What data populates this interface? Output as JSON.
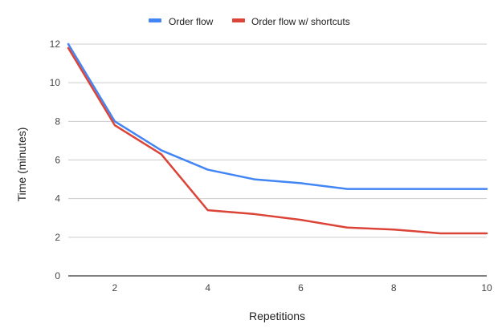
{
  "chart_data": {
    "type": "line",
    "title": "",
    "xlabel": "Repetitions",
    "ylabel": "Time (minutes)",
    "x": [
      1,
      2,
      3,
      4,
      5,
      6,
      7,
      8,
      9,
      10
    ],
    "xlim": [
      1,
      10
    ],
    "ylim": [
      0,
      12
    ],
    "x_ticks": [
      2,
      4,
      6,
      8,
      10
    ],
    "y_ticks": [
      0,
      2,
      4,
      6,
      8,
      10,
      12
    ],
    "grid": true,
    "legend_position": "top-center",
    "series": [
      {
        "name": "Order flow",
        "color": "#4285F4",
        "values": [
          12,
          8,
          6.5,
          5.5,
          5,
          4.8,
          4.5,
          4.5,
          4.5,
          4.5
        ]
      },
      {
        "name": "Order flow w/ shortcuts",
        "color": "#DB4437",
        "values": [
          11.8,
          7.8,
          6.3,
          3.4,
          3.2,
          2.9,
          2.5,
          2.4,
          2.2,
          2.2
        ]
      }
    ],
    "colors": {
      "grid": "#cccccc",
      "baseline": "#333333",
      "tick_text": "#444444",
      "title_text": "#222222"
    }
  }
}
